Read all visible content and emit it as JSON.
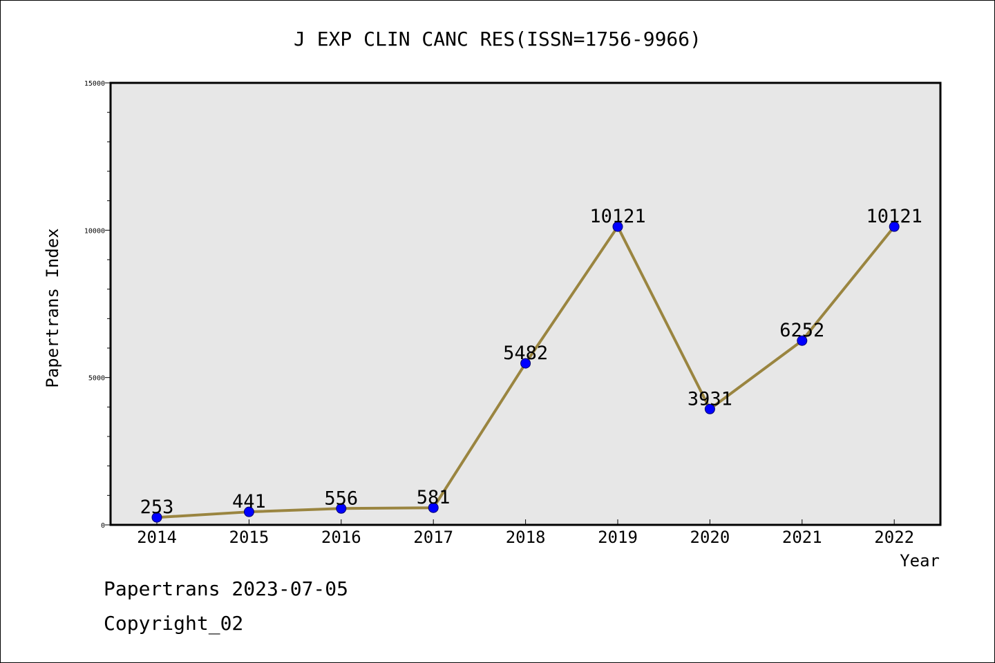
{
  "chart_data": {
    "type": "line",
    "title": "J EXP CLIN CANC RES(ISSN=1756-9966)",
    "xlabel": "Year",
    "ylabel": "Papertrans Index",
    "categories": [
      "2014",
      "2015",
      "2016",
      "2017",
      "2018",
      "2019",
      "2020",
      "2021",
      "2022"
    ],
    "values": [
      253,
      441,
      556,
      581,
      5482,
      10121,
      3931,
      6252,
      10121
    ],
    "ylim": [
      0,
      15000
    ],
    "yticks": [
      0,
      5000,
      10000,
      15000
    ],
    "ytick_labels": [
      "0",
      "5000",
      "10000",
      "15000"
    ],
    "grid": false,
    "legend": "none",
    "colors": {
      "plot_background": "#e7e7e7",
      "line": "#9a8540",
      "marker": "#0000ff"
    }
  },
  "footer": {
    "date_text": "Papertrans 2023-07-05",
    "copyright_text": "Copyright_02"
  }
}
